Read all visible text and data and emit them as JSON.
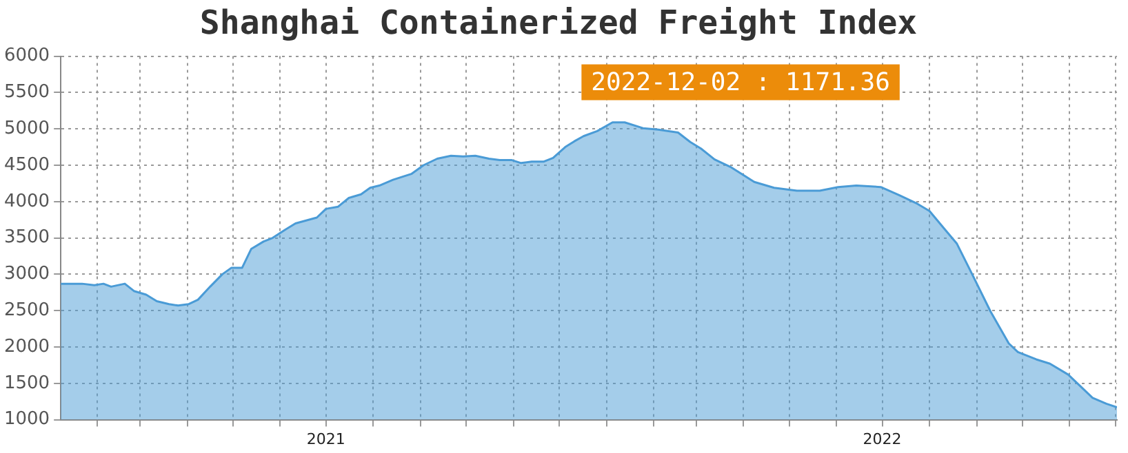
{
  "chart_data": {
    "type": "area",
    "title": "Shanghai Containerized Freight Index",
    "color": "#4a9bd6",
    "marker": "none",
    "grid": true,
    "x": [
      "2021-01-08",
      "2021-01-22",
      "2021-01-30",
      "2021-02-05",
      "2021-02-10",
      "2021-02-19",
      "2021-02-25",
      "2021-03-05",
      "2021-03-12",
      "2021-03-20",
      "2021-03-26",
      "2021-04-02",
      "2021-04-08",
      "2021-04-16",
      "2021-04-24",
      "2021-04-30",
      "2021-05-07",
      "2021-05-13",
      "2021-05-21",
      "2021-05-27",
      "2021-06-04",
      "2021-06-11",
      "2021-06-25",
      "2021-07-01",
      "2021-07-09",
      "2021-07-16",
      "2021-07-24",
      "2021-07-30",
      "2021-08-05",
      "2021-08-14",
      "2021-08-26",
      "2021-09-03",
      "2021-09-12",
      "2021-09-21",
      "2021-09-29",
      "2021-10-07",
      "2021-10-16",
      "2021-10-23",
      "2021-10-31",
      "2021-11-06",
      "2021-11-13",
      "2021-11-21",
      "2021-11-27",
      "2021-12-05",
      "2021-12-11",
      "2021-12-17",
      "2021-12-26",
      "2022-01-05",
      "2022-01-13",
      "2022-01-25",
      "2022-02-04",
      "2022-02-17",
      "2022-02-25",
      "2022-03-04",
      "2022-03-13",
      "2022-03-24",
      "2022-04-08",
      "2022-04-21",
      "2022-05-06",
      "2022-05-21",
      "2022-06-02",
      "2022-06-14",
      "2022-06-30",
      "2022-07-12",
      "2022-07-24",
      "2022-08-01",
      "2022-08-11",
      "2022-08-19",
      "2022-08-29",
      "2022-09-10",
      "2022-09-22",
      "2022-09-28",
      "2022-10-10",
      "2022-10-19",
      "2022-10-31",
      "2022-11-16",
      "2022-11-25",
      "2022-12-02"
    ],
    "values": [
      2870,
      2870,
      2850,
      2870,
      2830,
      2870,
      2770,
      2720,
      2630,
      2590,
      2570,
      2590,
      2650,
      2830,
      3000,
      3090,
      3090,
      3350,
      3450,
      3500,
      3610,
      3700,
      3780,
      3900,
      3930,
      4050,
      4100,
      4190,
      4220,
      4300,
      4380,
      4500,
      4590,
      4630,
      4620,
      4630,
      4590,
      4570,
      4570,
      4530,
      4550,
      4550,
      4600,
      4750,
      4830,
      4900,
      4970,
      5090,
      5090,
      5010,
      4990,
      4950,
      4820,
      4730,
      4580,
      4470,
      4270,
      4190,
      4150,
      4150,
      4200,
      4220,
      4200,
      4090,
      3970,
      3870,
      3620,
      3420,
      3000,
      2490,
      2050,
      1930,
      1830,
      1770,
      1620,
      1300,
      1220,
      1171.36
    ],
    "xlim": [
      "2021-01-08",
      "2022-12-02"
    ],
    "xticks": [
      {
        "value": "2021-02-01",
        "label": null
      },
      {
        "value": "2021-03-01",
        "label": null
      },
      {
        "value": "2021-04-01",
        "label": null
      },
      {
        "value": "2021-05-01",
        "label": null
      },
      {
        "value": "2021-06-01",
        "label": null
      },
      {
        "value": "2021-07-01",
        "label": "2021"
      },
      {
        "value": "2021-08-01",
        "label": null
      },
      {
        "value": "2021-09-01",
        "label": null
      },
      {
        "value": "2021-10-01",
        "label": null
      },
      {
        "value": "2021-11-01",
        "label": null
      },
      {
        "value": "2021-12-01",
        "label": null
      },
      {
        "value": "2022-01-01",
        "label": null
      },
      {
        "value": "2022-02-01",
        "label": null
      },
      {
        "value": "2022-03-01",
        "label": null
      },
      {
        "value": "2022-04-01",
        "label": null
      },
      {
        "value": "2022-05-01",
        "label": null
      },
      {
        "value": "2022-06-01",
        "label": null
      },
      {
        "value": "2022-07-01",
        "label": "2022"
      },
      {
        "value": "2022-08-01",
        "label": null
      },
      {
        "value": "2022-09-01",
        "label": null
      },
      {
        "value": "2022-10-01",
        "label": null
      },
      {
        "value": "2022-11-01",
        "label": null
      },
      {
        "value": "2022-12-01",
        "label": null
      }
    ],
    "ylim": [
      1000,
      6000
    ],
    "yticks": [
      1000,
      1500,
      2000,
      2500,
      3000,
      3500,
      4000,
      4500,
      5000,
      5500,
      6000
    ],
    "annotations": [
      "2022-12-02 : 1171.36"
    ]
  }
}
